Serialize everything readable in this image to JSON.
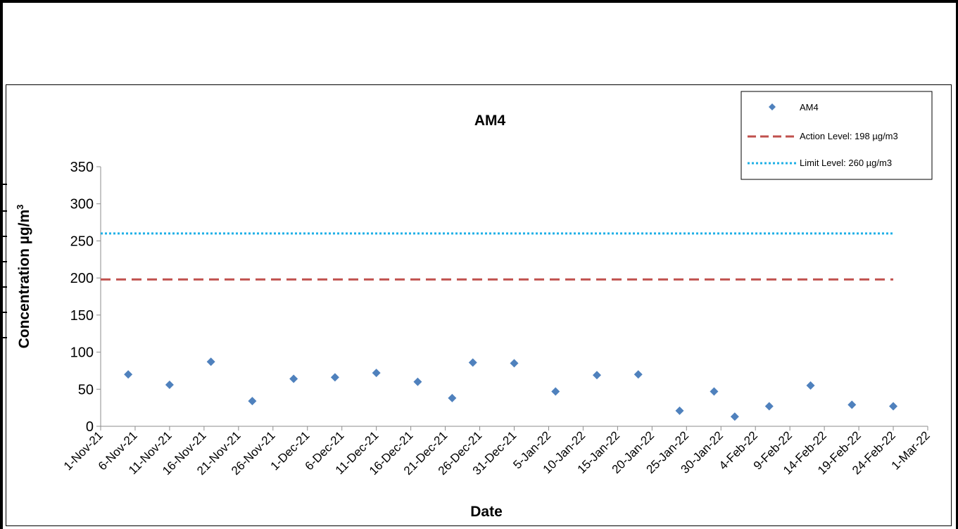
{
  "chart_data": {
    "type": "scatter",
    "title": "AM4",
    "xlabel": "Date",
    "ylabel": "Concentration µg/m",
    "ylabel_superscript": "3",
    "xlim": [
      "2021-11-01",
      "2022-03-01"
    ],
    "ylim": [
      0,
      350
    ],
    "yticks": [
      0,
      50,
      100,
      150,
      200,
      250,
      300,
      350
    ],
    "xticks": [
      "1-Nov-21",
      "6-Nov-21",
      "11-Nov-21",
      "16-Nov-21",
      "21-Nov-21",
      "26-Nov-21",
      "1-Dec-21",
      "6-Dec-21",
      "11-Dec-21",
      "16-Dec-21",
      "21-Dec-21",
      "26-Dec-21",
      "31-Dec-21",
      "5-Jan-22",
      "10-Jan-22",
      "15-Jan-22",
      "20-Jan-22",
      "25-Jan-22",
      "30-Jan-22",
      "4-Feb-22",
      "9-Feb-22",
      "14-Feb-22",
      "19-Feb-22",
      "24-Feb-22",
      "1-Mar-22"
    ],
    "grid": false,
    "legend_position": "top-right",
    "series": [
      {
        "name": "AM4",
        "kind": "scatter",
        "marker": "diamond",
        "color": "#4F81BD",
        "points": [
          {
            "x": "2021-11-05",
            "y": 70
          },
          {
            "x": "2021-11-11",
            "y": 56
          },
          {
            "x": "2021-11-17",
            "y": 87
          },
          {
            "x": "2021-11-23",
            "y": 34
          },
          {
            "x": "2021-11-29",
            "y": 64
          },
          {
            "x": "2021-12-05",
            "y": 66
          },
          {
            "x": "2021-12-11",
            "y": 72
          },
          {
            "x": "2021-12-17",
            "y": 60
          },
          {
            "x": "2021-12-22",
            "y": 38
          },
          {
            "x": "2021-12-25",
            "y": 86
          },
          {
            "x": "2021-12-31",
            "y": 85
          },
          {
            "x": "2022-01-06",
            "y": 47
          },
          {
            "x": "2022-01-12",
            "y": 69
          },
          {
            "x": "2022-01-18",
            "y": 70
          },
          {
            "x": "2022-01-24",
            "y": 21
          },
          {
            "x": "2022-01-29",
            "y": 47
          },
          {
            "x": "2022-02-01",
            "y": 13
          },
          {
            "x": "2022-02-06",
            "y": 27
          },
          {
            "x": "2022-02-12",
            "y": 55
          },
          {
            "x": "2022-02-18",
            "y": 29
          },
          {
            "x": "2022-02-24",
            "y": 27
          }
        ]
      },
      {
        "name": "Action Level: 198 µg/m3",
        "kind": "hline",
        "y": 198,
        "x_range": [
          "2021-11-01",
          "2022-02-24"
        ],
        "color": "#C0504D",
        "dash": "dashed"
      },
      {
        "name": "Limit Level: 260 µg/m3",
        "kind": "hline",
        "y": 260,
        "x_range": [
          "2021-11-01",
          "2022-02-24"
        ],
        "color": "#1FB0E6",
        "dash": "dotted"
      }
    ]
  }
}
